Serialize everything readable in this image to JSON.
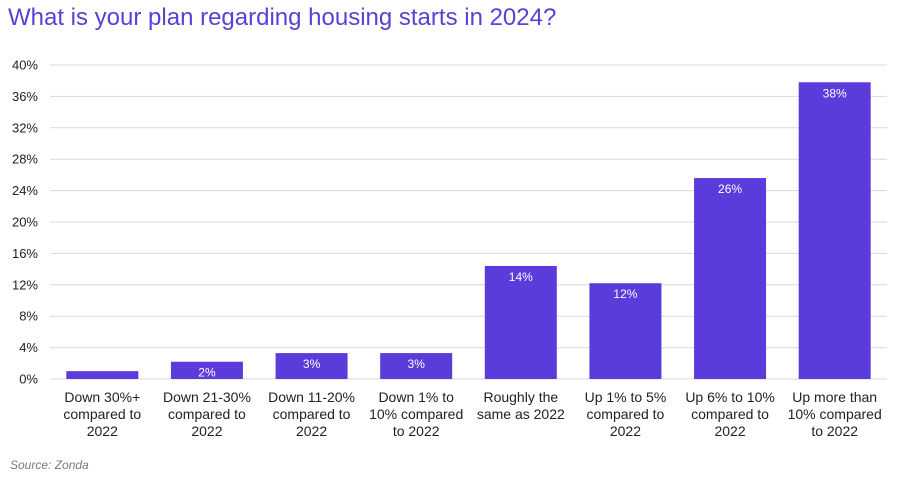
{
  "chart_data": {
    "type": "bar",
    "title": "What is your plan regarding housing starts in 2024?",
    "categories": [
      [
        "Down 30%+",
        "compared to",
        "2022"
      ],
      [
        "Down 21-30%",
        "compared to",
        "2022"
      ],
      [
        "Down 11-20%",
        "compared to",
        "2022"
      ],
      [
        "Down 1% to",
        "10% compared",
        "to 2022"
      ],
      [
        "Roughly the",
        "same as 2022"
      ],
      [
        "Up 1% to 5%",
        "compared to",
        "2022"
      ],
      [
        "Up 6% to 10%",
        "compared to",
        "2022"
      ],
      [
        "Up more than",
        "10% compared",
        "to 2022"
      ]
    ],
    "values": [
      1,
      2.2,
      3.3,
      3.3,
      14.4,
      12.2,
      25.6,
      37.8
    ],
    "data_labels": [
      "",
      "2%",
      "3%",
      "3%",
      "14%",
      "12%",
      "26%",
      "38%"
    ],
    "yticks": [
      0,
      4,
      8,
      12,
      16,
      20,
      24,
      28,
      32,
      36,
      40
    ],
    "ytick_labels": [
      "0%",
      "4%",
      "8%",
      "12%",
      "16%",
      "20%",
      "24%",
      "28%",
      "32%",
      "36%",
      "40%"
    ],
    "ylim": [
      0,
      40
    ],
    "xlabel": "",
    "ylabel": "",
    "grid": true,
    "legend": "none",
    "bar_color": "#5c3bdb",
    "grid_color": "#d9d9d9"
  },
  "source": "Source: Zonda",
  "colors": {
    "title": "#5b3fd6",
    "bar": "#5c3bdb",
    "text": "#222222",
    "source": "#7a7a7a"
  }
}
